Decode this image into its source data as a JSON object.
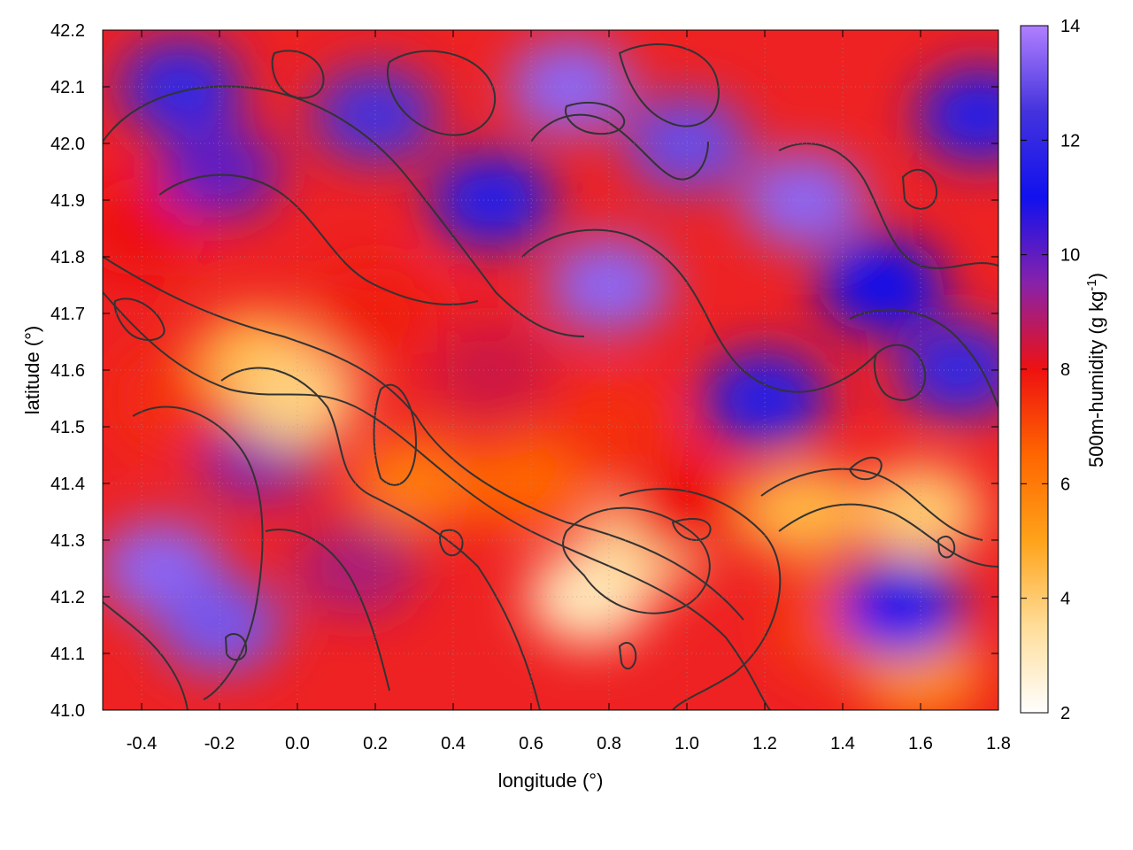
{
  "chart_data": {
    "type": "heatmap",
    "title": "",
    "xlabel": "longitude (°)",
    "ylabel": "latitude (°)",
    "xlim": [
      -0.5,
      1.8
    ],
    "ylim": [
      41.0,
      42.2
    ],
    "x_ticks": [
      -0.4,
      -0.2,
      0.0,
      0.2,
      0.4,
      0.6,
      0.8,
      1.0,
      1.2,
      1.4,
      1.6,
      1.8
    ],
    "x_tick_labels": [
      "-0.4",
      "-0.2",
      "0.0",
      "0.2",
      "0.4",
      "0.6",
      "0.8",
      "1.0",
      "1.2",
      "1.4",
      "1.6",
      "1.8"
    ],
    "y_ticks": [
      41.0,
      41.1,
      41.2,
      41.3,
      41.4,
      41.5,
      41.6,
      41.7,
      41.8,
      41.9,
      42.0,
      42.1,
      42.2
    ],
    "y_tick_labels": [
      "41.0",
      "41.1",
      "41.2",
      "41.3",
      "41.4",
      "41.5",
      "41.6",
      "41.7",
      "41.8",
      "41.9",
      "42.0",
      "42.1",
      "42.2"
    ],
    "grid": true,
    "colorbar": {
      "label_main": "500m-humidity (g kg",
      "label_sup": "-1",
      "label_close": ")",
      "range": [
        2,
        14
      ],
      "ticks": [
        2,
        4,
        6,
        8,
        10,
        12,
        14
      ],
      "tick_labels": [
        "2",
        "4",
        "6",
        "8",
        "10",
        "12",
        "14"
      ],
      "palette": [
        "#ffffff",
        "#ffdd99",
        "#ffa31a",
        "#ff6600",
        "#ee1111",
        "#8822aa",
        "#1111ee",
        "#4433dd",
        "#b07fff"
      ]
    },
    "regions": [
      {
        "lon": -0.35,
        "lat": 41.25,
        "value": 13.5
      },
      {
        "lon": -0.2,
        "lat": 41.15,
        "value": 13.2
      },
      {
        "lon": -0.1,
        "lat": 41.45,
        "value": 9.5
      },
      {
        "lon": -0.3,
        "lat": 41.55,
        "value": 7.5
      },
      {
        "lon": -0.1,
        "lat": 41.62,
        "value": 4.5
      },
      {
        "lon": 0.0,
        "lat": 41.55,
        "value": 3.8
      },
      {
        "lon": 0.15,
        "lat": 41.25,
        "value": 9.0
      },
      {
        "lon": 0.3,
        "lat": 41.4,
        "value": 6.0
      },
      {
        "lon": 0.6,
        "lat": 41.4,
        "value": 6.5
      },
      {
        "lon": 0.75,
        "lat": 41.2,
        "value": 3.0
      },
      {
        "lon": 0.9,
        "lat": 41.3,
        "value": 3.5
      },
      {
        "lon": 1.0,
        "lat": 41.35,
        "value": 8.0
      },
      {
        "lon": 1.3,
        "lat": 41.35,
        "value": 4.5
      },
      {
        "lon": 1.6,
        "lat": 41.35,
        "value": 4.0
      },
      {
        "lon": 1.4,
        "lat": 41.15,
        "value": 7.0
      },
      {
        "lon": 1.6,
        "lat": 41.07,
        "value": 5.5
      },
      {
        "lon": 1.55,
        "lat": 41.18,
        "value": 11.0
      },
      {
        "lon": 0.8,
        "lat": 41.5,
        "value": 7.5
      },
      {
        "lon": 0.5,
        "lat": 41.6,
        "value": 8.5
      },
      {
        "lon": 0.2,
        "lat": 41.7,
        "value": 7.8
      },
      {
        "lon": -0.4,
        "lat": 41.85,
        "value": 8.0
      },
      {
        "lon": -0.2,
        "lat": 41.95,
        "value": 10.0
      },
      {
        "lon": -0.3,
        "lat": 42.1,
        "value": 12.0
      },
      {
        "lon": 0.2,
        "lat": 42.05,
        "value": 12.5
      },
      {
        "lon": 0.5,
        "lat": 41.9,
        "value": 11.5
      },
      {
        "lon": 0.8,
        "lat": 41.75,
        "value": 13.5
      },
      {
        "lon": 1.0,
        "lat": 42.0,
        "value": 13.0
      },
      {
        "lon": 1.3,
        "lat": 41.9,
        "value": 13.5
      },
      {
        "lon": 1.2,
        "lat": 41.55,
        "value": 11.5
      },
      {
        "lon": 1.5,
        "lat": 41.75,
        "value": 11.0
      },
      {
        "lon": 1.7,
        "lat": 41.6,
        "value": 12.0
      },
      {
        "lon": 1.75,
        "lat": 42.05,
        "value": 11.5
      },
      {
        "lon": 0.7,
        "lat": 42.1,
        "value": 13.5
      }
    ]
  }
}
